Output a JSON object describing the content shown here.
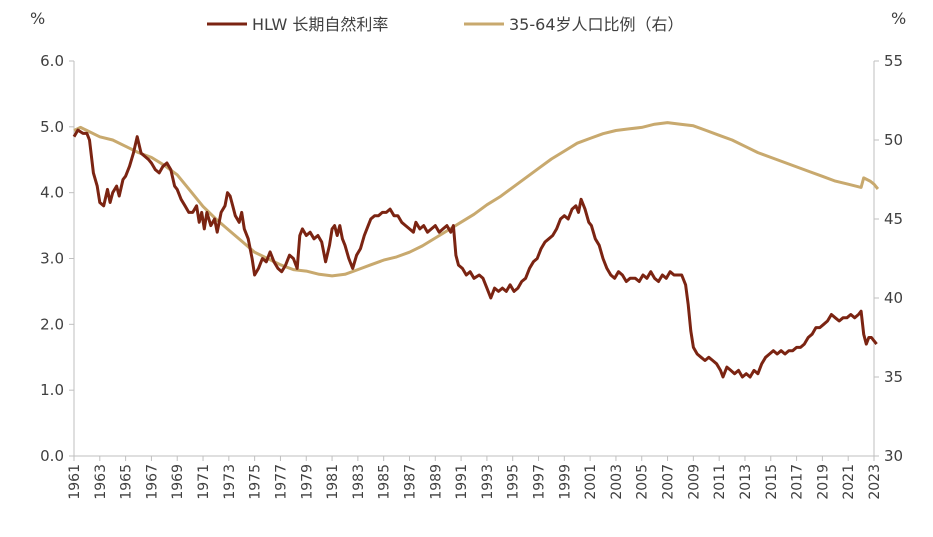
{
  "chart_data": {
    "type": "line",
    "left_unit": "%",
    "right_unit": "%",
    "y_left": {
      "min": 0,
      "max": 6,
      "ticks": [
        "0.0",
        "1.0",
        "2.0",
        "3.0",
        "4.0",
        "5.0",
        "6.0"
      ]
    },
    "y_right": {
      "min": 30,
      "max": 55,
      "ticks": [
        "30",
        "35",
        "40",
        "45",
        "50",
        "55"
      ]
    },
    "x_range": [
      1961,
      2023
    ],
    "x_ticks": [
      "1961",
      "1963",
      "1965",
      "1967",
      "1969",
      "1971",
      "1973",
      "1975",
      "1977",
      "1979",
      "1981",
      "1983",
      "1985",
      "1987",
      "1989",
      "1991",
      "1993",
      "1995",
      "1997",
      "1999",
      "2001",
      "2003",
      "2005",
      "2007",
      "2009",
      "2011",
      "2013",
      "2015",
      "2017",
      "2019",
      "2021",
      "2023"
    ],
    "grid": false,
    "legend_position": "top",
    "series": [
      {
        "name": "HLW 长期自然利率",
        "axis": "left",
        "color": "#7B2412",
        "points": [
          [
            1961.0,
            4.85
          ],
          [
            1961.3,
            4.95
          ],
          [
            1961.7,
            4.9
          ],
          [
            1962.0,
            4.9
          ],
          [
            1962.2,
            4.8
          ],
          [
            1962.5,
            4.3
          ],
          [
            1962.8,
            4.1
          ],
          [
            1963.0,
            3.85
          ],
          [
            1963.3,
            3.8
          ],
          [
            1963.6,
            4.05
          ],
          [
            1963.8,
            3.85
          ],
          [
            1964.0,
            4.0
          ],
          [
            1964.3,
            4.1
          ],
          [
            1964.5,
            3.95
          ],
          [
            1964.8,
            4.2
          ],
          [
            1965.0,
            4.25
          ],
          [
            1965.3,
            4.4
          ],
          [
            1965.6,
            4.6
          ],
          [
            1965.9,
            4.85
          ],
          [
            1966.2,
            4.6
          ],
          [
            1966.5,
            4.55
          ],
          [
            1966.8,
            4.5
          ],
          [
            1967.0,
            4.45
          ],
          [
            1967.3,
            4.35
          ],
          [
            1967.6,
            4.3
          ],
          [
            1967.9,
            4.4
          ],
          [
            1968.2,
            4.45
          ],
          [
            1968.5,
            4.35
          ],
          [
            1968.8,
            4.1
          ],
          [
            1969.0,
            4.05
          ],
          [
            1969.3,
            3.9
          ],
          [
            1969.6,
            3.8
          ],
          [
            1969.9,
            3.7
          ],
          [
            1970.2,
            3.7
          ],
          [
            1970.5,
            3.8
          ],
          [
            1970.7,
            3.55
          ],
          [
            1970.9,
            3.7
          ],
          [
            1971.1,
            3.45
          ],
          [
            1971.3,
            3.7
          ],
          [
            1971.6,
            3.5
          ],
          [
            1971.9,
            3.6
          ],
          [
            1972.1,
            3.4
          ],
          [
            1972.4,
            3.7
          ],
          [
            1972.7,
            3.8
          ],
          [
            1972.9,
            4.0
          ],
          [
            1973.1,
            3.95
          ],
          [
            1973.3,
            3.8
          ],
          [
            1973.5,
            3.65
          ],
          [
            1973.8,
            3.55
          ],
          [
            1974.0,
            3.7
          ],
          [
            1974.2,
            3.45
          ],
          [
            1974.5,
            3.3
          ],
          [
            1974.8,
            3.0
          ],
          [
            1975.0,
            2.75
          ],
          [
            1975.3,
            2.85
          ],
          [
            1975.6,
            3.0
          ],
          [
            1975.9,
            2.95
          ],
          [
            1976.2,
            3.1
          ],
          [
            1976.5,
            2.95
          ],
          [
            1976.8,
            2.85
          ],
          [
            1977.1,
            2.8
          ],
          [
            1977.4,
            2.9
          ],
          [
            1977.7,
            3.05
          ],
          [
            1978.0,
            3.0
          ],
          [
            1978.3,
            2.85
          ],
          [
            1978.5,
            3.35
          ],
          [
            1978.7,
            3.45
          ],
          [
            1979.0,
            3.35
          ],
          [
            1979.3,
            3.4
          ],
          [
            1979.6,
            3.3
          ],
          [
            1979.9,
            3.35
          ],
          [
            1980.2,
            3.25
          ],
          [
            1980.5,
            2.95
          ],
          [
            1980.8,
            3.2
          ],
          [
            1981.0,
            3.45
          ],
          [
            1981.2,
            3.5
          ],
          [
            1981.4,
            3.35
          ],
          [
            1981.6,
            3.5
          ],
          [
            1981.8,
            3.3
          ],
          [
            1982.0,
            3.2
          ],
          [
            1982.3,
            3.0
          ],
          [
            1982.6,
            2.85
          ],
          [
            1982.9,
            3.05
          ],
          [
            1983.2,
            3.15
          ],
          [
            1983.5,
            3.35
          ],
          [
            1983.8,
            3.5
          ],
          [
            1984.0,
            3.6
          ],
          [
            1984.3,
            3.65
          ],
          [
            1984.6,
            3.65
          ],
          [
            1984.9,
            3.7
          ],
          [
            1985.2,
            3.7
          ],
          [
            1985.5,
            3.75
          ],
          [
            1985.8,
            3.65
          ],
          [
            1986.1,
            3.65
          ],
          [
            1986.4,
            3.55
          ],
          [
            1986.7,
            3.5
          ],
          [
            1987.0,
            3.45
          ],
          [
            1987.3,
            3.4
          ],
          [
            1987.5,
            3.55
          ],
          [
            1987.8,
            3.45
          ],
          [
            1988.1,
            3.5
          ],
          [
            1988.4,
            3.4
          ],
          [
            1988.7,
            3.45
          ],
          [
            1989.0,
            3.5
          ],
          [
            1989.3,
            3.4
          ],
          [
            1989.6,
            3.45
          ],
          [
            1989.9,
            3.5
          ],
          [
            1990.2,
            3.4
          ],
          [
            1990.4,
            3.5
          ],
          [
            1990.6,
            3.05
          ],
          [
            1990.8,
            2.9
          ],
          [
            1991.1,
            2.85
          ],
          [
            1991.4,
            2.75
          ],
          [
            1991.7,
            2.8
          ],
          [
            1992.0,
            2.7
          ],
          [
            1992.4,
            2.75
          ],
          [
            1992.7,
            2.7
          ],
          [
            1993.0,
            2.55
          ],
          [
            1993.3,
            2.4
          ],
          [
            1993.6,
            2.55
          ],
          [
            1993.9,
            2.5
          ],
          [
            1994.2,
            2.55
          ],
          [
            1994.5,
            2.5
          ],
          [
            1994.8,
            2.6
          ],
          [
            1995.1,
            2.5
          ],
          [
            1995.4,
            2.55
          ],
          [
            1995.7,
            2.65
          ],
          [
            1996.0,
            2.7
          ],
          [
            1996.3,
            2.85
          ],
          [
            1996.6,
            2.95
          ],
          [
            1996.9,
            3.0
          ],
          [
            1997.2,
            3.15
          ],
          [
            1997.5,
            3.25
          ],
          [
            1997.8,
            3.3
          ],
          [
            1998.1,
            3.35
          ],
          [
            1998.4,
            3.45
          ],
          [
            1998.7,
            3.6
          ],
          [
            1999.0,
            3.65
          ],
          [
            1999.3,
            3.6
          ],
          [
            1999.6,
            3.75
          ],
          [
            1999.9,
            3.8
          ],
          [
            2000.1,
            3.7
          ],
          [
            2000.3,
            3.9
          ],
          [
            2000.6,
            3.75
          ],
          [
            2000.9,
            3.55
          ],
          [
            2001.1,
            3.5
          ],
          [
            2001.4,
            3.3
          ],
          [
            2001.7,
            3.2
          ],
          [
            2002.0,
            3.0
          ],
          [
            2002.3,
            2.85
          ],
          [
            2002.6,
            2.75
          ],
          [
            2002.9,
            2.7
          ],
          [
            2003.2,
            2.8
          ],
          [
            2003.5,
            2.75
          ],
          [
            2003.8,
            2.65
          ],
          [
            2004.1,
            2.7
          ],
          [
            2004.5,
            2.7
          ],
          [
            2004.8,
            2.65
          ],
          [
            2005.1,
            2.75
          ],
          [
            2005.4,
            2.7
          ],
          [
            2005.7,
            2.8
          ],
          [
            2006.0,
            2.7
          ],
          [
            2006.3,
            2.65
          ],
          [
            2006.6,
            2.75
          ],
          [
            2006.9,
            2.7
          ],
          [
            2007.2,
            2.8
          ],
          [
            2007.5,
            2.75
          ],
          [
            2007.8,
            2.75
          ],
          [
            2008.1,
            2.75
          ],
          [
            2008.4,
            2.6
          ],
          [
            2008.6,
            2.3
          ],
          [
            2008.8,
            1.9
          ],
          [
            2009.0,
            1.65
          ],
          [
            2009.3,
            1.55
          ],
          [
            2009.6,
            1.5
          ],
          [
            2009.9,
            1.45
          ],
          [
            2010.2,
            1.5
          ],
          [
            2010.5,
            1.45
          ],
          [
            2010.8,
            1.4
          ],
          [
            2011.1,
            1.3
          ],
          [
            2011.3,
            1.2
          ],
          [
            2011.6,
            1.35
          ],
          [
            2011.9,
            1.3
          ],
          [
            2012.2,
            1.25
          ],
          [
            2012.5,
            1.3
          ],
          [
            2012.8,
            1.2
          ],
          [
            2013.1,
            1.25
          ],
          [
            2013.4,
            1.2
          ],
          [
            2013.7,
            1.3
          ],
          [
            2014.0,
            1.25
          ],
          [
            2014.3,
            1.4
          ],
          [
            2014.6,
            1.5
          ],
          [
            2014.9,
            1.55
          ],
          [
            2015.2,
            1.6
          ],
          [
            2015.5,
            1.55
          ],
          [
            2015.8,
            1.6
          ],
          [
            2016.1,
            1.55
          ],
          [
            2016.4,
            1.6
          ],
          [
            2016.7,
            1.6
          ],
          [
            2017.0,
            1.65
          ],
          [
            2017.3,
            1.65
          ],
          [
            2017.6,
            1.7
          ],
          [
            2017.9,
            1.8
          ],
          [
            2018.2,
            1.85
          ],
          [
            2018.5,
            1.95
          ],
          [
            2018.8,
            1.95
          ],
          [
            2019.1,
            2.0
          ],
          [
            2019.4,
            2.05
          ],
          [
            2019.7,
            2.15
          ],
          [
            2020.0,
            2.1
          ],
          [
            2020.3,
            2.05
          ],
          [
            2020.6,
            2.1
          ],
          [
            2020.9,
            2.1
          ],
          [
            2021.2,
            2.15
          ],
          [
            2021.5,
            2.1
          ],
          [
            2021.8,
            2.15
          ],
          [
            2022.0,
            2.2
          ],
          [
            2022.2,
            1.85
          ],
          [
            2022.4,
            1.7
          ],
          [
            2022.6,
            1.8
          ],
          [
            2022.8,
            1.8
          ],
          [
            2023.0,
            1.75
          ],
          [
            2023.2,
            1.7
          ]
        ]
      },
      {
        "name": "35-64岁人口比例（右）",
        "axis": "right",
        "color": "#C8A96E",
        "points": [
          [
            1961.0,
            50.6
          ],
          [
            1961.5,
            50.8
          ],
          [
            1962.0,
            50.6
          ],
          [
            1963.0,
            50.2
          ],
          [
            1964.0,
            50.0
          ],
          [
            1965.0,
            49.6
          ],
          [
            1966.0,
            49.2
          ],
          [
            1967.0,
            48.9
          ],
          [
            1968.0,
            48.4
          ],
          [
            1969.0,
            47.8
          ],
          [
            1970.0,
            46.8
          ],
          [
            1971.0,
            45.8
          ],
          [
            1972.0,
            45.0
          ],
          [
            1973.0,
            44.3
          ],
          [
            1974.0,
            43.6
          ],
          [
            1975.0,
            42.9
          ],
          [
            1976.0,
            42.5
          ],
          [
            1977.0,
            42.1
          ],
          [
            1978.0,
            41.8
          ],
          [
            1979.0,
            41.7
          ],
          [
            1980.0,
            41.5
          ],
          [
            1981.0,
            41.4
          ],
          [
            1982.0,
            41.5
          ],
          [
            1983.0,
            41.8
          ],
          [
            1984.0,
            42.1
          ],
          [
            1985.0,
            42.4
          ],
          [
            1986.0,
            42.6
          ],
          [
            1987.0,
            42.9
          ],
          [
            1988.0,
            43.3
          ],
          [
            1989.0,
            43.8
          ],
          [
            1990.0,
            44.3
          ],
          [
            1991.0,
            44.8
          ],
          [
            1992.0,
            45.3
          ],
          [
            1993.0,
            45.9
          ],
          [
            1994.0,
            46.4
          ],
          [
            1995.0,
            47.0
          ],
          [
            1996.0,
            47.6
          ],
          [
            1997.0,
            48.2
          ],
          [
            1998.0,
            48.8
          ],
          [
            1999.0,
            49.3
          ],
          [
            2000.0,
            49.8
          ],
          [
            2001.0,
            50.1
          ],
          [
            2002.0,
            50.4
          ],
          [
            2003.0,
            50.6
          ],
          [
            2004.0,
            50.7
          ],
          [
            2005.0,
            50.8
          ],
          [
            2006.0,
            51.0
          ],
          [
            2007.0,
            51.1
          ],
          [
            2008.0,
            51.0
          ],
          [
            2009.0,
            50.9
          ],
          [
            2010.0,
            50.6
          ],
          [
            2011.0,
            50.3
          ],
          [
            2012.0,
            50.0
          ],
          [
            2013.0,
            49.6
          ],
          [
            2014.0,
            49.2
          ],
          [
            2015.0,
            48.9
          ],
          [
            2016.0,
            48.6
          ],
          [
            2017.0,
            48.3
          ],
          [
            2018.0,
            48.0
          ],
          [
            2019.0,
            47.7
          ],
          [
            2020.0,
            47.4
          ],
          [
            2021.0,
            47.2
          ],
          [
            2022.0,
            47.0
          ],
          [
            2022.2,
            47.6
          ],
          [
            2022.7,
            47.4
          ],
          [
            2023.0,
            47.2
          ],
          [
            2023.3,
            46.9
          ]
        ]
      }
    ]
  }
}
